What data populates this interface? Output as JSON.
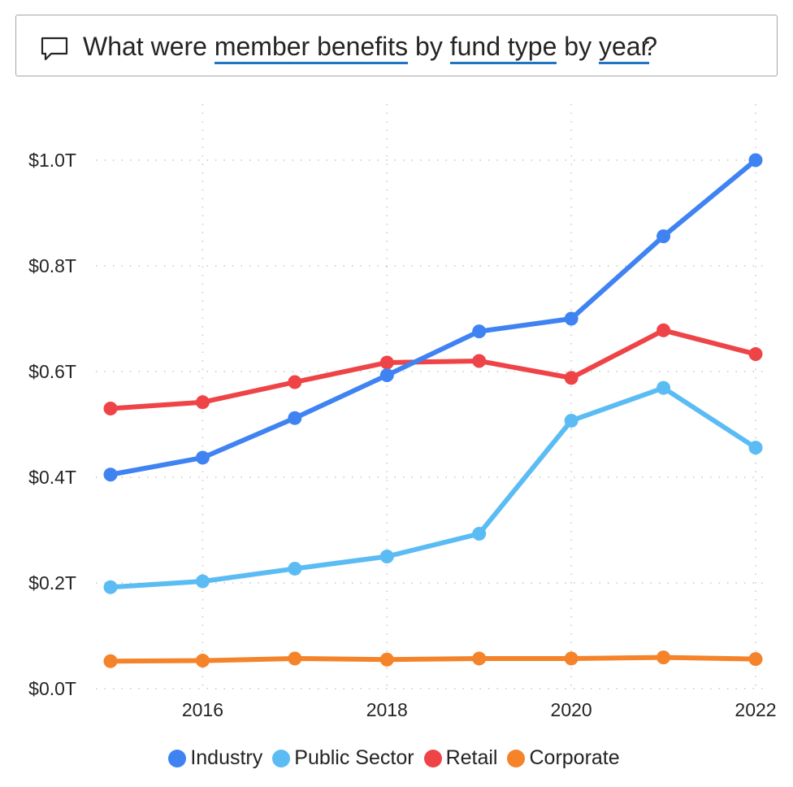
{
  "qa": {
    "parts": [
      "What were",
      "member benefits",
      "by",
      "fund type",
      "by",
      "year",
      "?"
    ],
    "icon": "speech-bubble-icon"
  },
  "chart_data": {
    "type": "line",
    "title": "",
    "xlabel": "",
    "ylabel": "",
    "x": [
      2015,
      2016,
      2017,
      2018,
      2019,
      2020,
      2021,
      2022
    ],
    "x_tick_labels": [
      "2016",
      "2018",
      "2020",
      "2022"
    ],
    "x_tick_values": [
      2016,
      2018,
      2020,
      2022
    ],
    "ylim": [
      0,
      1.0
    ],
    "y_tick_values": [
      0,
      0.2,
      0.4,
      0.6,
      0.8,
      1.0
    ],
    "y_tick_labels": [
      "$0.0T",
      "$0.2T",
      "$0.4T",
      "$0.6T",
      "$0.8T",
      "$1.0T"
    ],
    "grid": true,
    "legend_position": "bottom-center",
    "series": [
      {
        "name": "Industry",
        "color": "#3f83f2",
        "values": [
          0.405,
          0.437,
          0.512,
          0.593,
          0.676,
          0.7,
          0.856,
          1.0
        ]
      },
      {
        "name": "Public Sector",
        "color": "#5bbcf4",
        "values": [
          0.192,
          0.203,
          0.227,
          0.25,
          0.293,
          0.507,
          0.569,
          0.456
        ]
      },
      {
        "name": "Retail",
        "color": "#ef4447",
        "values": [
          0.53,
          0.542,
          0.58,
          0.617,
          0.62,
          0.588,
          0.678,
          0.633
        ]
      },
      {
        "name": "Corporate",
        "color": "#f4832a",
        "values": [
          0.052,
          0.053,
          0.057,
          0.055,
          0.057,
          0.057,
          0.059,
          0.056
        ]
      }
    ]
  }
}
